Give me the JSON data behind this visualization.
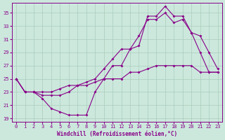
{
  "xlabel": "Windchill (Refroidissement éolien,°C)",
  "bg_color": "#cce8dd",
  "line_color": "#880088",
  "grid_color": "#aaccbb",
  "xlim": [
    -0.5,
    23.5
  ],
  "ylim": [
    18.5,
    36.5
  ],
  "yticks": [
    19,
    21,
    23,
    25,
    27,
    29,
    31,
    33,
    35
  ],
  "xticks": [
    0,
    1,
    2,
    3,
    4,
    5,
    6,
    7,
    8,
    9,
    10,
    11,
    12,
    13,
    14,
    15,
    16,
    17,
    18,
    19,
    20,
    21,
    22,
    23
  ],
  "series1_x": [
    0,
    1,
    2,
    3,
    4,
    5,
    6,
    7,
    8,
    9,
    10,
    11,
    12,
    13,
    14,
    15,
    16,
    17,
    18,
    19,
    20,
    21,
    22,
    23
  ],
  "series1_y": [
    25,
    23,
    23,
    22,
    20.5,
    20,
    19.5,
    19.5,
    19.5,
    23,
    25,
    27,
    27,
    29.5,
    30,
    34.5,
    34.5,
    36,
    34.5,
    34.5,
    32,
    29,
    26,
    26
  ],
  "series2_x": [
    0,
    1,
    2,
    3,
    4,
    5,
    6,
    7,
    8,
    9,
    10,
    11,
    12,
    13,
    14,
    15,
    16,
    17,
    18,
    19,
    20,
    21,
    22,
    23
  ],
  "series2_y": [
    25,
    23,
    23,
    23,
    23,
    23.5,
    24,
    24,
    24,
    24.5,
    25,
    25,
    25,
    26,
    26,
    26.5,
    27,
    27,
    27,
    27,
    27,
    26,
    26,
    26
  ],
  "series3_x": [
    0,
    1,
    2,
    3,
    4,
    5,
    6,
    7,
    8,
    9,
    10,
    11,
    12,
    13,
    14,
    15,
    16,
    17,
    18,
    19,
    20,
    21,
    22,
    23
  ],
  "series3_y": [
    25,
    23,
    23,
    22.5,
    22.5,
    22.5,
    23,
    24,
    24.5,
    25,
    26.5,
    28,
    29.5,
    29.5,
    31.5,
    34,
    34,
    35,
    33.5,
    34,
    32,
    31.5,
    29,
    26.5
  ]
}
